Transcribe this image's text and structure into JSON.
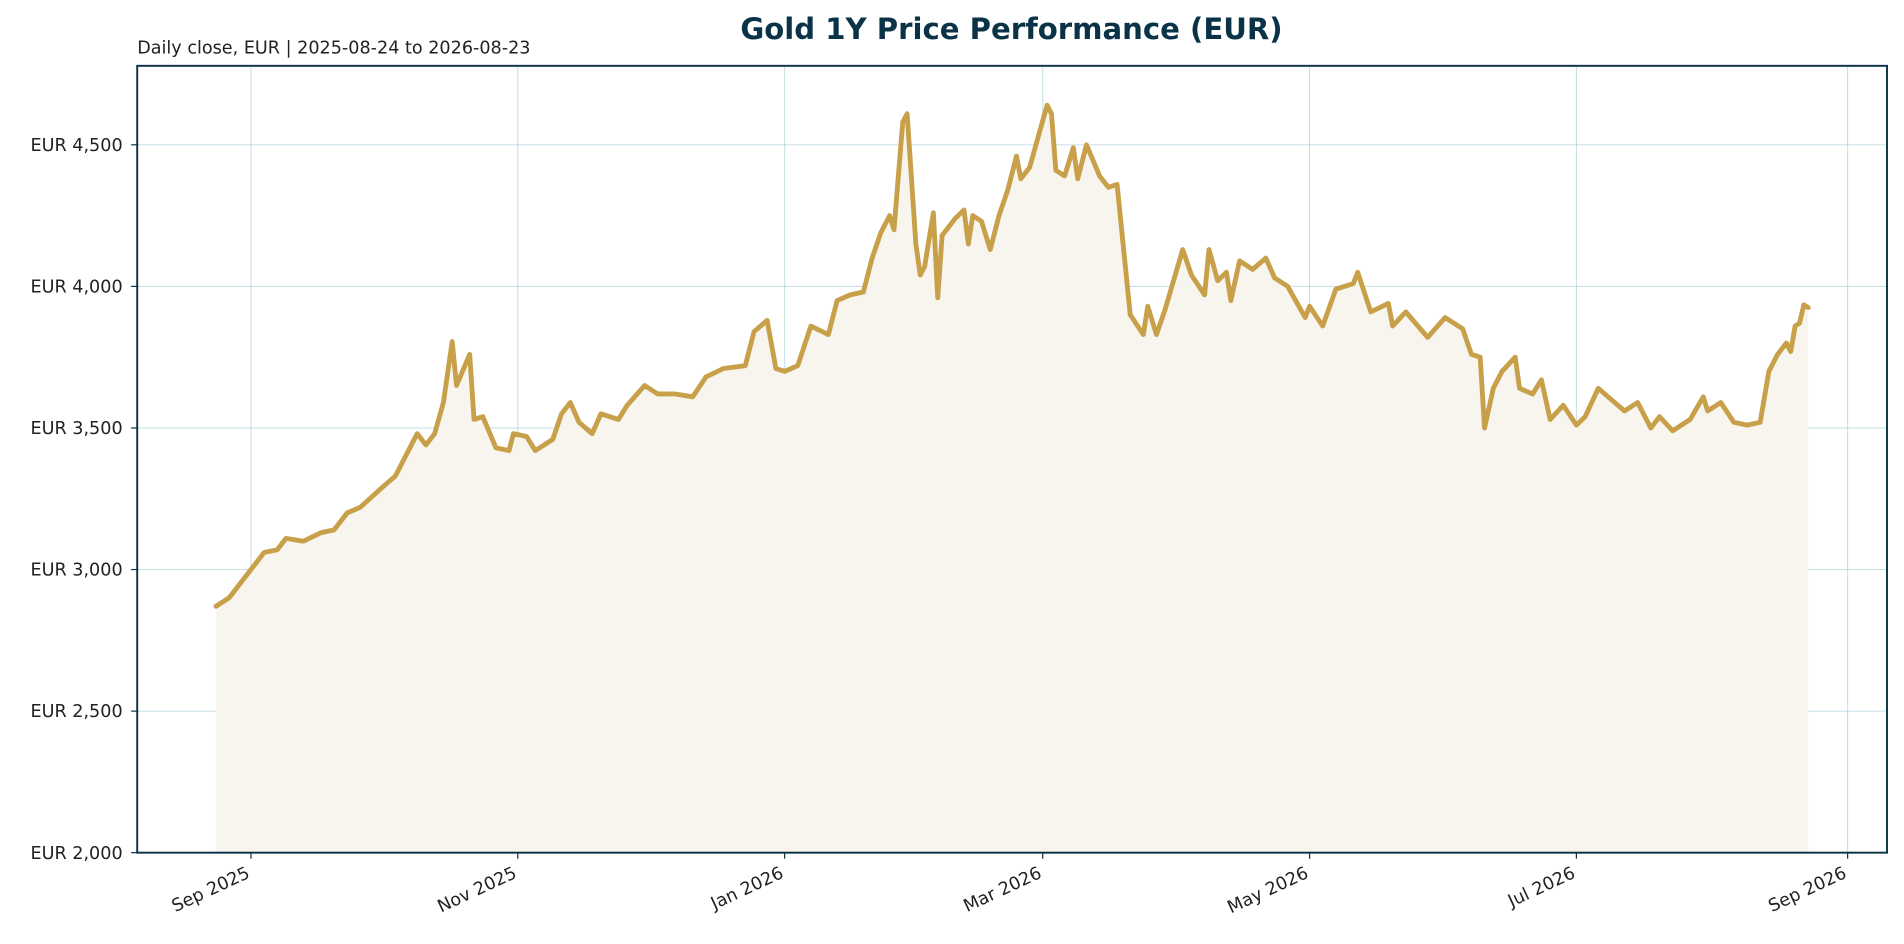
{
  "chart_data": {
    "type": "line",
    "title": "Gold 1Y Price Performance (EUR)",
    "subtitle": "Daily close, EUR | 2025-08-24 to 2026-08-23",
    "color": "#c8a04a",
    "fill_color": "#f8f4ee",
    "grid": true,
    "xlim": [
      "2025-08-06",
      "2026-09-10"
    ],
    "ylim": [
      2000,
      4779
    ],
    "xticks": [
      {
        "value": "2025-09-01",
        "label": "Sep 2025"
      },
      {
        "value": "2025-11-01",
        "label": "Nov 2025"
      },
      {
        "value": "2026-01-01",
        "label": "Jan 2026"
      },
      {
        "value": "2026-03-01",
        "label": "Mar 2026"
      },
      {
        "value": "2026-05-01",
        "label": "May 2026"
      },
      {
        "value": "2026-07-01",
        "label": "Jul 2026"
      },
      {
        "value": "2026-09-01",
        "label": "Sep 2026"
      }
    ],
    "yticks": [
      {
        "value": 2000,
        "label": "EUR 2,000"
      },
      {
        "value": 2500,
        "label": "EUR 2,500"
      },
      {
        "value": 3000,
        "label": "EUR 3,000"
      },
      {
        "value": 3500,
        "label": "EUR 3,500"
      },
      {
        "value": 4000,
        "label": "EUR 4,000"
      },
      {
        "value": 4500,
        "label": "EUR 4,500"
      }
    ],
    "x": [
      "2025-08-24",
      "2025-08-27",
      "2025-08-30",
      "2025-09-01",
      "2025-09-04",
      "2025-09-07",
      "2025-09-09",
      "2025-09-13",
      "2025-09-17",
      "2025-09-20",
      "2025-09-23",
      "2025-09-26",
      "2025-10-01",
      "2025-10-04",
      "2025-10-07",
      "2025-10-09",
      "2025-10-11",
      "2025-10-13",
      "2025-10-15",
      "2025-10-17",
      "2025-10-18",
      "2025-10-21",
      "2025-10-22",
      "2025-10-24",
      "2025-10-27",
      "2025-10-30",
      "2025-10-31",
      "2025-11-03",
      "2025-11-05",
      "2025-11-09",
      "2025-11-11",
      "2025-11-13",
      "2025-11-15",
      "2025-11-18",
      "2025-11-20",
      "2025-11-24",
      "2025-11-26",
      "2025-11-30",
      "2025-12-03",
      "2025-12-07",
      "2025-12-11",
      "2025-12-14",
      "2025-12-18",
      "2025-12-23",
      "2025-12-25",
      "2025-12-28",
      "2025-12-30",
      "2026-01-01",
      "2026-01-04",
      "2026-01-07",
      "2026-01-11",
      "2026-01-13",
      "2026-01-16",
      "2026-01-19",
      "2026-01-21",
      "2026-01-23",
      "2026-01-25",
      "2026-01-26",
      "2026-01-28",
      "2026-01-29",
      "2026-01-31",
      "2026-02-01",
      "2026-02-02",
      "2026-02-04",
      "2026-02-05",
      "2026-02-06",
      "2026-02-09",
      "2026-02-11",
      "2026-02-12",
      "2026-02-13",
      "2026-02-15",
      "2026-02-17",
      "2026-02-19",
      "2026-02-21",
      "2026-02-23",
      "2026-02-24",
      "2026-02-26",
      "2026-03-02",
      "2026-03-03",
      "2026-03-04",
      "2026-03-06",
      "2026-03-08",
      "2026-03-09",
      "2026-03-11",
      "2026-03-14",
      "2026-03-16",
      "2026-03-18",
      "2026-03-21",
      "2026-03-24",
      "2026-03-25",
      "2026-03-27",
      "2026-03-29",
      "2026-04-02",
      "2026-04-04",
      "2026-04-07",
      "2026-04-08",
      "2026-04-10",
      "2026-04-12",
      "2026-04-13",
      "2026-04-15",
      "2026-04-18",
      "2026-04-21",
      "2026-04-23",
      "2026-04-26",
      "2026-04-30",
      "2026-05-01",
      "2026-05-04",
      "2026-05-07",
      "2026-05-11",
      "2026-05-12",
      "2026-05-15",
      "2026-05-19",
      "2026-05-20",
      "2026-05-23",
      "2026-05-28",
      "2026-06-01",
      "2026-06-05",
      "2026-06-07",
      "2026-06-09",
      "2026-06-10",
      "2026-06-12",
      "2026-06-14",
      "2026-06-17",
      "2026-06-18",
      "2026-06-21",
      "2026-06-23",
      "2026-06-25",
      "2026-06-28",
      "2026-07-01",
      "2026-07-03",
      "2026-07-06",
      "2026-07-09",
      "2026-07-12",
      "2026-07-15",
      "2026-07-18",
      "2026-07-20",
      "2026-07-23",
      "2026-07-27",
      "2026-07-30",
      "2026-07-31",
      "2026-08-03",
      "2026-08-06",
      "2026-08-09",
      "2026-08-12",
      "2026-08-14",
      "2026-08-16",
      "2026-08-18",
      "2026-08-19",
      "2026-08-20",
      "2026-08-21",
      "2026-08-22",
      "2026-08-23"
    ],
    "values": [
      2870,
      2900,
      2960,
      3000,
      3060,
      3070,
      3110,
      3100,
      3130,
      3140,
      3200,
      3220,
      3290,
      3330,
      3420,
      3480,
      3440,
      3480,
      3590,
      3805,
      3650,
      3760,
      3530,
      3540,
      3430,
      3420,
      3480,
      3470,
      3420,
      3460,
      3550,
      3590,
      3520,
      3480,
      3550,
      3530,
      3580,
      3650,
      3620,
      3620,
      3610,
      3680,
      3710,
      3720,
      3840,
      3880,
      3710,
      3700,
      3720,
      3860,
      3830,
      3950,
      3970,
      3980,
      4100,
      4190,
      4250,
      4200,
      4580,
      4610,
      4150,
      4040,
      4070,
      4260,
      3960,
      4180,
      4240,
      4270,
      4150,
      4250,
      4230,
      4130,
      4250,
      4340,
      4460,
      4380,
      4420,
      4640,
      4610,
      4410,
      4390,
      4490,
      4380,
      4500,
      4390,
      4350,
      4360,
      3900,
      3830,
      3930,
      3830,
      3920,
      4130,
      4040,
      3970,
      4130,
      4020,
      4050,
      3950,
      4090,
      4060,
      4100,
      4030,
      4000,
      3890,
      3930,
      3860,
      3990,
      4010,
      4050,
      3910,
      3940,
      3860,
      3910,
      3820,
      3890,
      3850,
      3760,
      3750,
      3500,
      3640,
      3700,
      3750,
      3640,
      3620,
      3670,
      3530,
      3580,
      3510,
      3540,
      3640,
      3600,
      3560,
      3590,
      3500,
      3540,
      3490,
      3530,
      3610,
      3560,
      3590,
      3520,
      3510,
      3520,
      3700,
      3760,
      3800,
      3770,
      3860,
      3870,
      3935,
      3925
    ]
  }
}
